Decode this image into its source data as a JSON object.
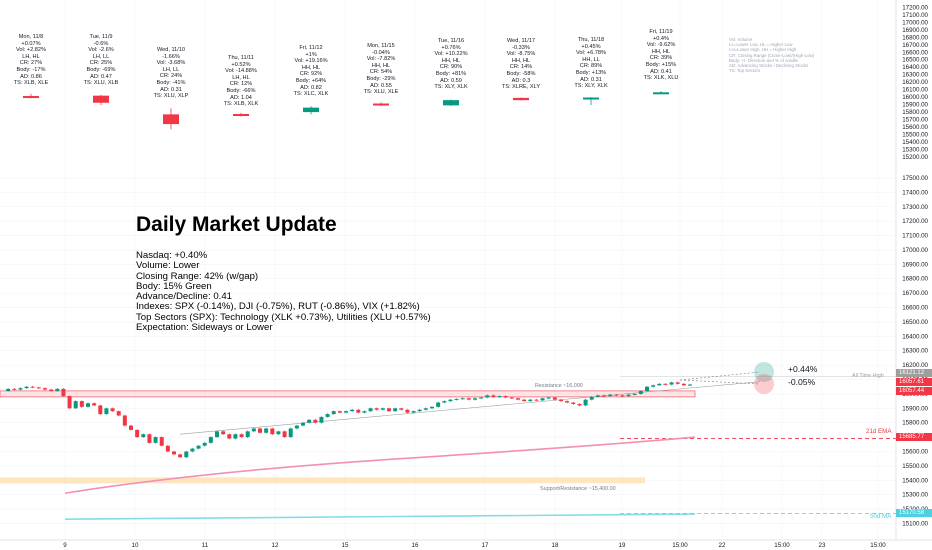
{
  "colors": {
    "up": "#089981",
    "down": "#f23645",
    "ma21": "#f48fb1",
    "ma50": "#80deea",
    "zone": "#ffe0b2",
    "grid": "#f0f3fa",
    "axis_text": "#131722",
    "ath_tag": "#9e9e9e",
    "price_tag": "#f23645",
    "ma50_tag": "#4dd0e1"
  },
  "headline": "Daily Market Update",
  "summary_lines": [
    "Nasdaq: +0.40%",
    "Volume: Lower",
    "Closing Range: 42% (w/gap)",
    "Body: 15% Green",
    "Advance/Decline: 0.41",
    "Indexes: SPX (-0.14%), DJI (-0.75%), RUT (-0.86%), VIX (+1.82%)",
    "Top Sectors (SPX): Technology (XLK +0.73%), Utilities (XLU +0.57%)",
    "Expectation: Sideways or Lower"
  ],
  "legend_lines": [
    "Vol: Volume",
    "LL=Lower Low, HL = Higher Low",
    "LH=Lower High, HH = Higher High",
    "CR: Closing Range (Close-Low)/(High-Low)",
    "Body: +/- Direction and % of candle",
    "AD: Advancing Stocks / Declining Stocks",
    "TS: Top Sectors"
  ],
  "day_cards": [
    {
      "lines": [
        "Mon, 11/8",
        "+0.07%",
        "Vol: +2.82%",
        "LH, HL",
        "CR: 27%",
        "Body: -17%",
        "AD: 0.86",
        "TS: XLB, XLE"
      ],
      "candle": {
        "o": 16015,
        "h": 16045,
        "l": 15985,
        "c": 16010
      },
      "dir": "down"
    },
    {
      "lines": [
        "Tue, 11/9",
        "-0.6%",
        "Vol: -2.6%",
        "LH, LL",
        "CR: 25%",
        "Body: -69%",
        "AD: 0.47",
        "TS: XLU, XLB"
      ],
      "candle": {
        "o": 16020,
        "h": 16030,
        "l": 15895,
        "c": 15925
      },
      "dir": "down"
    },
    {
      "lines": [
        "Wed, 11/10",
        "-1.66%",
        "Vol: -3.68%",
        "LH, LL",
        "CR: 24%",
        "Body: -41%",
        "AD: 0.31",
        "TS: XLU, XLP"
      ],
      "candle": {
        "o": 15770,
        "h": 15850,
        "l": 15570,
        "c": 15640
      },
      "dir": "down"
    },
    {
      "lines": [
        "Thu, 11/11",
        "+0.52%",
        "Vol: -14.88%",
        "LH, HL",
        "CR: 12%",
        "Body: -66%",
        "AD: 1.04",
        "TS: XLB, XLK"
      ],
      "candle": {
        "o": 15775,
        "h": 15790,
        "l": 15740,
        "c": 15750
      },
      "dir": "down"
    },
    {
      "lines": [
        "Fri, 11/12",
        "+1%",
        "Vol: +19.16%",
        "HH, HL",
        "CR: 92%",
        "Body: +64%",
        "AD: 0.82",
        "TS: XLC, XLK"
      ],
      "candle": {
        "o": 15800,
        "h": 15880,
        "l": 15770,
        "c": 15860
      },
      "dir": "up"
    },
    {
      "lines": [
        "Mon, 11/15",
        "-0.04%",
        "Vol: -7.82%",
        "HH, HL",
        "CR: 54%",
        "Body: -29%",
        "AD: 0.55",
        "TS: XLU, XLE"
      ],
      "candle": {
        "o": 15915,
        "h": 15930,
        "l": 15880,
        "c": 15895
      },
      "dir": "down"
    },
    {
      "lines": [
        "Tue, 11/16",
        "+0.76%",
        "Vol: +10.22%",
        "HH, HL",
        "CR: 90%",
        "Body: +81%",
        "AD: 0.59",
        "TS: XLY, XLK"
      ],
      "candle": {
        "o": 15890,
        "h": 15970,
        "l": 15880,
        "c": 15960
      },
      "dir": "up"
    },
    {
      "lines": [
        "Wed, 11/17",
        "-0.33%",
        "Vol: -8.75%",
        "HH, HL",
        "CR: 14%",
        "Body: -58%",
        "AD: 0.3",
        "TS: XLRE, XLY"
      ],
      "candle": {
        "o": 15990,
        "h": 15995,
        "l": 15955,
        "c": 15960
      },
      "dir": "down"
    },
    {
      "lines": [
        "Thu, 11/18",
        "+0.45%",
        "Vol: +6.78%",
        "HH, LL",
        "CR: 89%",
        "Body: +13%",
        "AD: 0.31",
        "TS: XLY, XLK"
      ],
      "candle": {
        "o": 15985,
        "h": 16000,
        "l": 15895,
        "c": 15995
      },
      "dir": "up"
    },
    {
      "lines": [
        "Fri, 11/19",
        "+0.4%",
        "Vol: -9.62%",
        "HH, HL",
        "CR: 39%",
        "Body: +15%",
        "AD: 0.41",
        "TS: XLK, XLU"
      ],
      "candle": {
        "o": 16060,
        "h": 16080,
        "l": 16040,
        "c": 16065
      },
      "dir": "up"
    }
  ],
  "chart_data": [
    {
      "type": "bar",
      "title": "",
      "categories": [
        "Mon, 11/8",
        "Tue, 11/9",
        "Wed, 11/10",
        "Thu, 11/11",
        "Fri, 11/12",
        "Mon, 11/15",
        "Tue, 11/16",
        "Wed, 11/17",
        "Thu, 11/18",
        "Fri, 11/19"
      ],
      "upper_axis_ticks": [
        17200,
        17100,
        17000,
        16900,
        16800,
        16700,
        16600,
        16500,
        16400,
        16300,
        16200,
        16100,
        16000,
        15900,
        15800,
        15700,
        15600,
        15500,
        15400,
        15300,
        15200
      ],
      "ylim": [
        15160,
        17245
      ]
    },
    {
      "type": "line",
      "title": "",
      "lower_axis_ticks": [
        17500,
        17400,
        17300,
        17200,
        17100,
        17000,
        16900,
        16800,
        16700,
        16600,
        16500,
        16400,
        16300,
        16200,
        16100,
        16000,
        15900,
        15800,
        15700,
        15600,
        15500,
        15400,
        15300,
        15200,
        15100
      ],
      "ylim": [
        15020,
        17590
      ],
      "x_labels": [
        "9",
        "10",
        "11",
        "12",
        "15",
        "16",
        "17",
        "18",
        "19",
        "15:00",
        "22",
        "15:00",
        "23",
        "15:00"
      ],
      "price_series": [
        16020,
        16035,
        16030,
        16040,
        16050,
        16045,
        16040,
        16030,
        16020,
        16035,
        15985,
        15900,
        15950,
        15910,
        15935,
        15920,
        15860,
        15900,
        15880,
        15850,
        15780,
        15750,
        15700,
        15720,
        15660,
        15700,
        15640,
        15600,
        15580,
        15560,
        15600,
        15620,
        15640,
        15660,
        15700,
        15740,
        15720,
        15690,
        15720,
        15700,
        15740,
        15760,
        15730,
        15760,
        15720,
        15740,
        15700,
        15760,
        15780,
        15800,
        15820,
        15800,
        15840,
        15860,
        15880,
        15870,
        15880,
        15890,
        15870,
        15880,
        15900,
        15890,
        15900,
        15880,
        15900,
        15890,
        15870,
        15880,
        15890,
        15900,
        15910,
        15940,
        15950,
        15960,
        15965,
        15970,
        15960,
        15970,
        15975,
        15990,
        15980,
        15985,
        15975,
        15970,
        15960,
        15950,
        15960,
        15955,
        15970,
        15975,
        15960,
        15950,
        15940,
        15930,
        15920,
        15960,
        15980,
        15990,
        15985,
        15995,
        15990,
        15985,
        15995,
        16000,
        16020,
        16050,
        16060,
        16070,
        16065,
        16080,
        16070,
        16060,
        16065
      ],
      "annotations": {
        "resistance_label": "Resistance ~16,000",
        "support_label": "Support/Resistance ~15,400.00",
        "ath_label": "All Time High",
        "ma21_label": "21d EMA",
        "ma50_label": "50d MA",
        "up_target": "+0.44%",
        "down_target": "-0.05%"
      },
      "price_tags": {
        "ath": "16121.12",
        "last": "16057.61",
        "prev": "16057.44",
        "ma21": "15685.77",
        "ma50": "15170.58"
      },
      "ma21_range": [
        15310,
        15700
      ],
      "ma50_range": [
        15130,
        15165
      ],
      "levels": {
        "resistance": 16000,
        "support": 15400
      }
    }
  ]
}
